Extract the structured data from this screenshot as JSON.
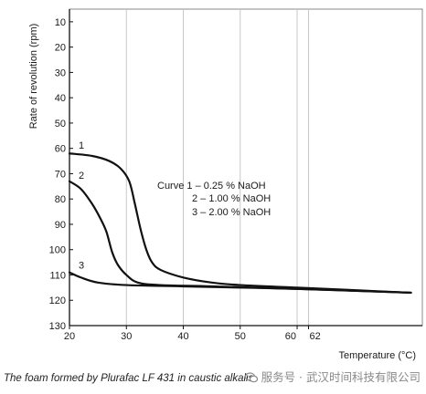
{
  "chart_data": {
    "type": "line",
    "title": "",
    "xlabel": "Temperature (°C)",
    "ylabel": "Rate of revolution (rpm)",
    "xlim": [
      20,
      82
    ],
    "ylim": [
      5,
      130
    ],
    "y_inverted": true,
    "x_ticks": [
      20,
      30,
      40,
      50,
      60,
      62
    ],
    "y_ticks": [
      10,
      20,
      30,
      40,
      50,
      60,
      70,
      80,
      90,
      100,
      110,
      120,
      130
    ],
    "grid": "vertical",
    "legend_lines": [
      "Curve 1 – 0.25 % NaOH",
      "2 – 1.00 % NaOH",
      "3 – 2.00 % NaOH"
    ],
    "series": [
      {
        "name": "1",
        "points": [
          [
            20,
            62
          ],
          [
            24,
            63
          ],
          [
            27,
            65
          ],
          [
            29,
            68
          ],
          [
            30.5,
            73
          ],
          [
            31.5,
            82
          ],
          [
            32.5,
            92
          ],
          [
            33.5,
            100
          ],
          [
            34.5,
            105
          ],
          [
            36,
            108
          ],
          [
            40,
            111
          ],
          [
            45,
            113
          ],
          [
            50,
            114
          ],
          [
            60,
            115
          ],
          [
            70,
            116
          ],
          [
            80,
            117
          ]
        ]
      },
      {
        "name": "2",
        "points": [
          [
            20,
            73
          ],
          [
            22,
            76
          ],
          [
            24,
            82
          ],
          [
            25.5,
            88
          ],
          [
            26.5,
            93
          ],
          [
            27.5,
            101
          ],
          [
            28.5,
            106
          ],
          [
            30,
            110
          ],
          [
            32,
            113
          ],
          [
            36,
            114
          ],
          [
            45,
            114.5
          ],
          [
            60,
            115.5
          ],
          [
            80,
            117
          ]
        ]
      },
      {
        "name": "3",
        "points": [
          [
            20,
            109
          ],
          [
            22,
            111
          ],
          [
            25,
            113
          ],
          [
            30,
            114
          ],
          [
            40,
            114.5
          ],
          [
            60,
            115.5
          ],
          [
            80,
            117
          ]
        ]
      }
    ]
  },
  "caption": "The foam formed by Plurafac LF 431 in caustic alkalis",
  "watermark": "服务号 · 武汉时间科技有限公司",
  "colors": {
    "line": "#111111",
    "grid": "#c8c8c8",
    "frame": "#6e6e6e"
  }
}
